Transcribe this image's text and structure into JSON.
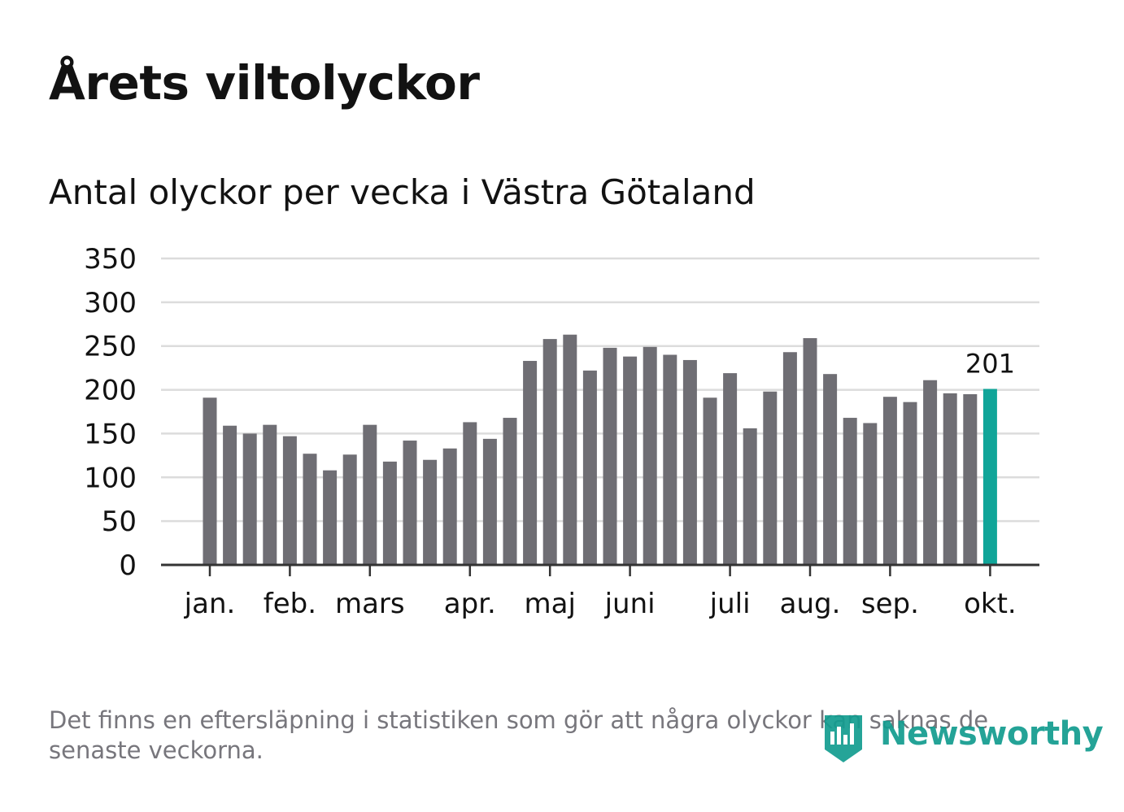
{
  "title": "Årets viltolyckor",
  "subtitle": "Antal olyckor per vecka i Västra Götaland",
  "footnote": "Det finns en eftersläpning i statistiken som gör att några olyckor kan saknas de senaste veckorna.",
  "logo": {
    "text": "Newsworthy",
    "icon": "newsworthy-bar-chart-icon"
  },
  "colors": {
    "bar": "#6f6e74",
    "highlight": "#10a599",
    "grid": "#dcdcdc",
    "axis": "#333333",
    "text": "#121212",
    "muted": "#77767c"
  },
  "chart_data": {
    "type": "bar",
    "ylim": [
      0,
      350
    ],
    "yticks": [
      "0",
      "50",
      "100",
      "150",
      "200",
      "250",
      "300",
      "350"
    ],
    "values": [
      191,
      159,
      150,
      160,
      147,
      127,
      108,
      126,
      160,
      118,
      142,
      120,
      133,
      163,
      144,
      168,
      233,
      258,
      263,
      222,
      248,
      238,
      249,
      240,
      234,
      191,
      219,
      156,
      198,
      243,
      259,
      218,
      168,
      162,
      192,
      186,
      211,
      196,
      195,
      201
    ],
    "month_labels": [
      {
        "label": "jan.",
        "week": 0
      },
      {
        "label": "feb.",
        "week": 4
      },
      {
        "label": "mars",
        "week": 8
      },
      {
        "label": "apr.",
        "week": 13
      },
      {
        "label": "maj",
        "week": 17
      },
      {
        "label": "juni",
        "week": 21
      },
      {
        "label": "juli",
        "week": 26
      },
      {
        "label": "aug.",
        "week": 30
      },
      {
        "label": "sep.",
        "week": 34
      },
      {
        "label": "okt.",
        "week": 39
      }
    ],
    "highlight_index": 39,
    "highlight_label": "201",
    "grid": true
  }
}
